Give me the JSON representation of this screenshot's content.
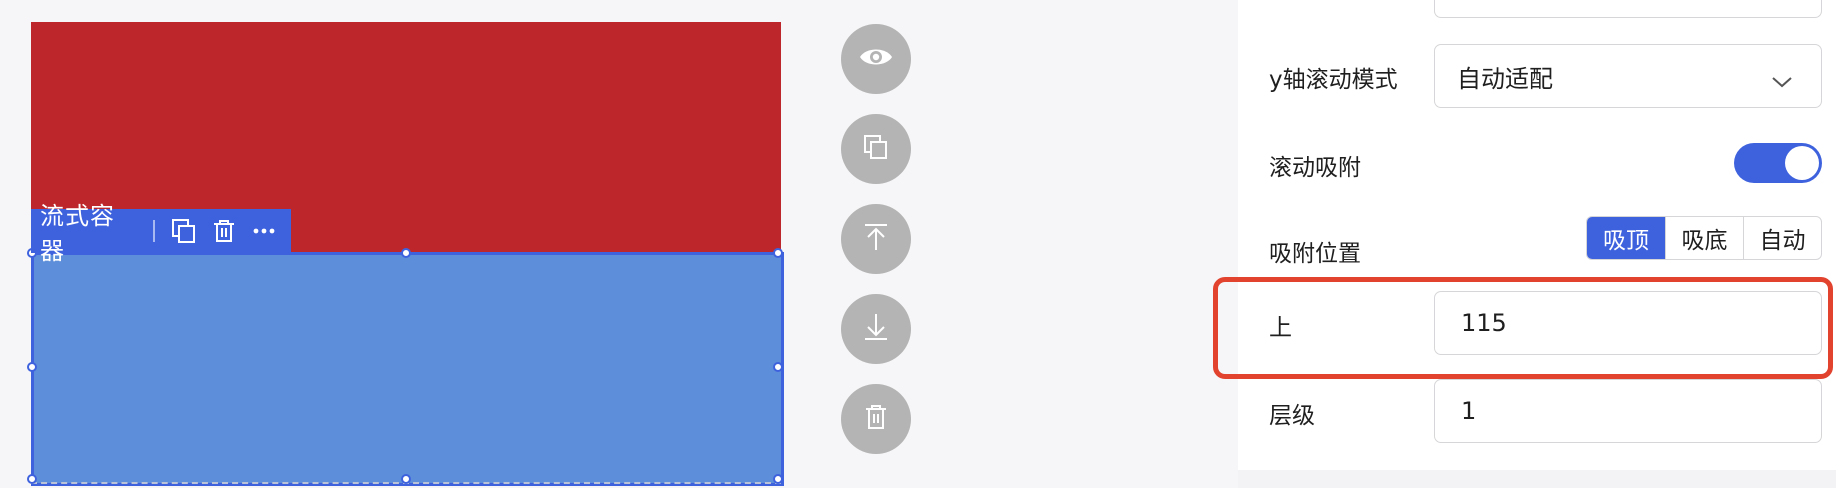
{
  "canvas": {
    "component_name": "流式容器",
    "red_color": "#bd272b",
    "blue_color": "#5d8ed9",
    "selection_color": "#3e62de",
    "toolbar_icons": [
      "copy-icon",
      "delete-icon",
      "more-icon"
    ]
  },
  "actions": [
    {
      "name": "preview",
      "icon": "eye-icon"
    },
    {
      "name": "copy",
      "icon": "copy-icon"
    },
    {
      "name": "move-up",
      "icon": "arrow-up-icon"
    },
    {
      "name": "move-down",
      "icon": "arrow-down-icon"
    },
    {
      "name": "delete",
      "icon": "trash-icon"
    }
  ],
  "panel": {
    "scroll_y": {
      "label": "y轴滚动模式",
      "value": "自动适配"
    },
    "scroll_snap": {
      "label": "滚动吸附",
      "enabled": true
    },
    "snap_position": {
      "label": "吸附位置",
      "options": [
        "吸顶",
        "吸底",
        "自动"
      ],
      "selected": "吸顶"
    },
    "top": {
      "label": "上",
      "value": "115"
    },
    "z_index": {
      "label": "层级",
      "value": "1"
    },
    "highlight_color": "#e1432f"
  }
}
